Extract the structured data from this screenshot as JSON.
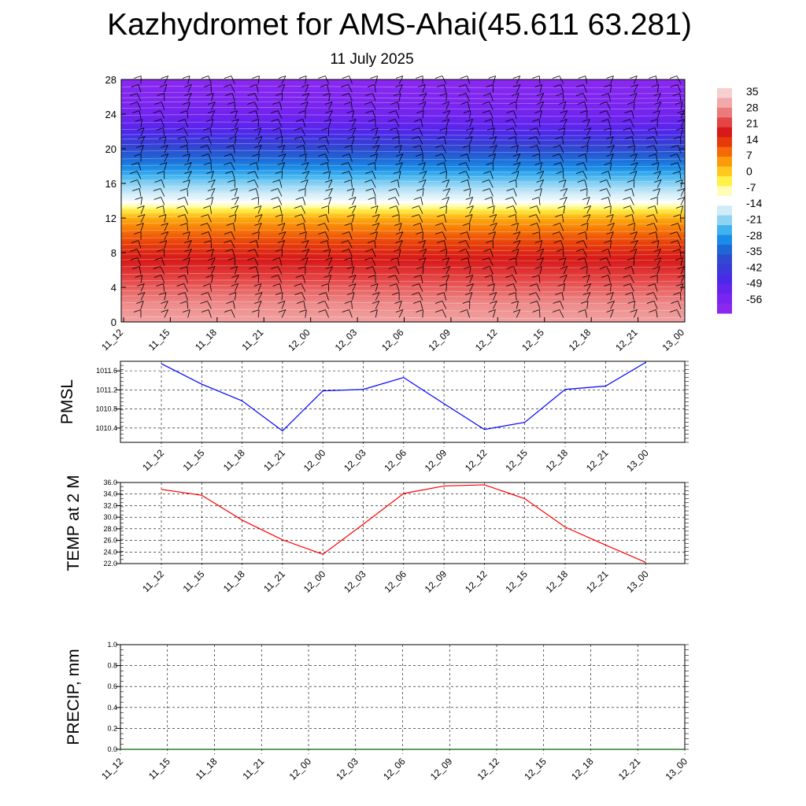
{
  "title": "Kazhydromet for AMS-Ahai(45.611 63.281)",
  "subtitle": "11 July 2025",
  "colors": {
    "pmsl_line": "#0000ff",
    "temp_line": "#ff0000",
    "precip_line": "#006400",
    "wind_barb": "#000000",
    "grid": "#000000"
  },
  "chart_data": [
    {
      "type": "heatmap",
      "name": "temperature-wind-cross-section",
      "x_ticks": [
        "11_12",
        "11_15",
        "11_18",
        "11_21",
        "12_00",
        "12_03",
        "12_06",
        "12_09",
        "12_12",
        "12_15",
        "12_18",
        "12_21",
        "13_00"
      ],
      "y_ticks": [
        0,
        4,
        8,
        12,
        16,
        20,
        24,
        28
      ],
      "ylim": [
        0,
        28
      ],
      "colorbar_labels": [
        35,
        28,
        21,
        14,
        7,
        0,
        -7,
        -14,
        -21,
        -28,
        -35,
        -42,
        -49,
        -56
      ],
      "colorbar_colors": [
        "#f6d0d0",
        "#f2a9a9",
        "#ec7a7a",
        "#e54444",
        "#d71919",
        "#e63a0b",
        "#f46a08",
        "#fb9b0a",
        "#ffc81e",
        "#fff04a",
        "#fffdb6",
        "#ffffff",
        "#d0ecf8",
        "#8fd3f4",
        "#40b3ef",
        "#1a8be6",
        "#1f66d6",
        "#2f4ad0",
        "#3a3ad8",
        "#4a2ae8",
        "#6424ee",
        "#7a24ef",
        "#8a28f0"
      ],
      "profile_levels": [
        0,
        2,
        4,
        6,
        8,
        10,
        12,
        13,
        14,
        16,
        18,
        20,
        22,
        24,
        26,
        28
      ],
      "profile_temps": [
        30,
        28,
        24,
        20,
        16,
        10,
        3,
        -4,
        -14,
        -22,
        -31,
        -39,
        -49,
        -55,
        -58,
        -61
      ],
      "wind_barbs": "present at every 1.5 h column and each 1 km level"
    },
    {
      "type": "line",
      "name": "PMSL",
      "ylabel": "PMSL",
      "x": [
        "11_12",
        "11_15",
        "11_18",
        "11_21",
        "12_00",
        "12_03",
        "12_06",
        "12_09",
        "12_12",
        "12_15",
        "12_18",
        "12_21",
        "13_00"
      ],
      "y_ticks": [
        1010.4,
        1010.8,
        1011.2,
        1011.6
      ],
      "ylim": [
        1010.1,
        1011.8
      ],
      "values": [
        1011.75,
        1011.32,
        1010.97,
        1010.34,
        1011.18,
        1011.21,
        1011.46,
        1010.91,
        1010.37,
        1010.52,
        1011.21,
        1011.28,
        1011.78
      ]
    },
    {
      "type": "line",
      "name": "TEMP at 2 M",
      "ylabel": "TEMP at 2 M",
      "x": [
        "11_12",
        "11_15",
        "11_18",
        "11_21",
        "12_00",
        "12_03",
        "12_06",
        "12_09",
        "12_12",
        "12_15",
        "12_18",
        "12_21",
        "13_00"
      ],
      "y_ticks": [
        "22.0",
        "24.0",
        "26.0",
        "28.0",
        "30.0",
        "32.0",
        "34.0",
        "36.0"
      ],
      "ylim": [
        22,
        36
      ],
      "values": [
        34.8,
        33.8,
        29.5,
        26.1,
        23.6,
        28.8,
        34.1,
        35.4,
        35.6,
        33.2,
        28.3,
        25.2,
        22.2
      ]
    },
    {
      "type": "line",
      "name": "PRECIP, mm",
      "ylabel": "PRECIP, mm",
      "x": [
        "11_12",
        "11_15",
        "11_18",
        "11_21",
        "12_00",
        "12_03",
        "12_06",
        "12_09",
        "12_12",
        "12_15",
        "12_18",
        "12_21",
        "13_00"
      ],
      "y_ticks": [
        "0.0",
        "0.2",
        "0.4",
        "0.6",
        "0.8",
        "1.0"
      ],
      "ylim": [
        0,
        1
      ],
      "values": [
        0,
        0,
        0,
        0,
        0,
        0,
        0,
        0,
        0,
        0,
        0,
        0,
        0
      ]
    }
  ]
}
